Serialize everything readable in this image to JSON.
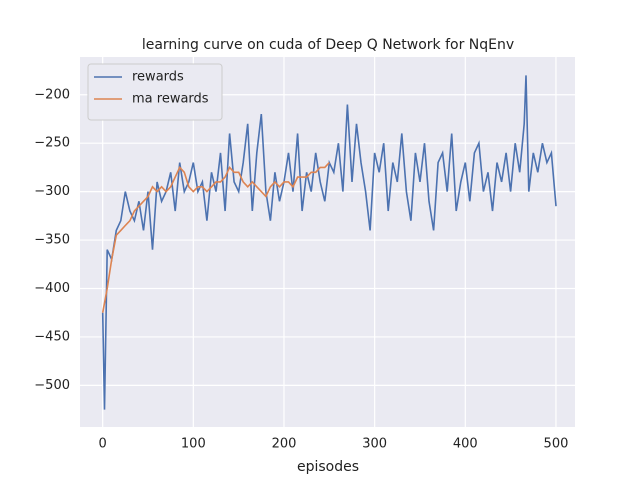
{
  "chart_data": {
    "type": "line",
    "title": "learning curve on cuda of Deep Q Network for NqEnv",
    "x_label": "episodes",
    "xlim": [
      -25,
      521
    ],
    "ylim": [
      -543,
      -161
    ],
    "xticks": [
      0,
      100,
      200,
      300,
      400,
      500
    ],
    "yticks": [
      {
        "value": -500,
        "label": "−500"
      },
      {
        "value": -450,
        "label": "−450"
      },
      {
        "value": -400,
        "label": "−400"
      },
      {
        "value": -350,
        "label": "−350"
      },
      {
        "value": -300,
        "label": "−300"
      },
      {
        "value": -250,
        "label": "−250"
      },
      {
        "value": -200,
        "label": "−200"
      }
    ],
    "grid": true,
    "legend": "upper left",
    "series": [
      {
        "name": "rewards",
        "color": "#4c72b0",
        "x": [
          0,
          2,
          5,
          10,
          15,
          20,
          25,
          30,
          35,
          40,
          45,
          50,
          55,
          60,
          65,
          70,
          75,
          80,
          85,
          90,
          95,
          100,
          105,
          110,
          115,
          120,
          125,
          130,
          135,
          140,
          145,
          150,
          155,
          160,
          165,
          170,
          175,
          180,
          185,
          190,
          195,
          200,
          205,
          210,
          215,
          220,
          225,
          230,
          235,
          240,
          245,
          250,
          255,
          260,
          265,
          270,
          275,
          280,
          285,
          290,
          295,
          300,
          305,
          310,
          315,
          320,
          325,
          330,
          335,
          340,
          345,
          350,
          355,
          360,
          365,
          370,
          375,
          380,
          385,
          390,
          395,
          400,
          405,
          410,
          415,
          420,
          425,
          430,
          435,
          440,
          445,
          450,
          455,
          460,
          465,
          467,
          470,
          475,
          480,
          485,
          490,
          495,
          500
        ],
        "values": [
          -425,
          -525,
          -360,
          -370,
          -340,
          -330,
          -300,
          -320,
          -330,
          -310,
          -340,
          -300,
          -360,
          -290,
          -310,
          -300,
          -280,
          -320,
          -270,
          -300,
          -290,
          -270,
          -300,
          -290,
          -330,
          -280,
          -300,
          -260,
          -320,
          -240,
          -290,
          -300,
          -270,
          -230,
          -320,
          -260,
          -220,
          -300,
          -330,
          -280,
          -310,
          -290,
          -260,
          -300,
          -240,
          -320,
          -280,
          -300,
          -260,
          -290,
          -310,
          -270,
          -280,
          -250,
          -300,
          -210,
          -290,
          -230,
          -270,
          -300,
          -340,
          -260,
          -280,
          -250,
          -320,
          -270,
          -290,
          -240,
          -300,
          -330,
          -260,
          -290,
          -250,
          -310,
          -340,
          -270,
          -260,
          -300,
          -240,
          -320,
          -290,
          -270,
          -310,
          -260,
          -250,
          -300,
          -280,
          -320,
          -270,
          -290,
          -260,
          -300,
          -250,
          -280,
          -230,
          -180,
          -300,
          -260,
          -280,
          -250,
          -270,
          -260,
          -315
        ]
      },
      {
        "name": "ma rewards",
        "color": "#dd8452",
        "x": [
          0,
          5,
          10,
          15,
          20,
          25,
          30,
          35,
          40,
          45,
          50,
          55,
          60,
          65,
          70,
          75,
          80,
          85,
          90,
          95,
          100,
          105,
          110,
          115,
          120,
          125,
          130,
          135,
          140,
          145,
          150,
          155,
          160,
          165,
          170,
          175,
          180,
          185,
          190,
          195,
          200,
          205,
          210,
          215,
          220,
          225,
          230,
          235,
          240,
          245,
          250
        ],
        "values": [
          -425,
          -400,
          -370,
          -345,
          -340,
          -335,
          -330,
          -320,
          -315,
          -310,
          -305,
          -295,
          -300,
          -295,
          -300,
          -295,
          -285,
          -275,
          -280,
          -295,
          -300,
          -295,
          -295,
          -300,
          -295,
          -290,
          -290,
          -285,
          -275,
          -280,
          -280,
          -290,
          -295,
          -290,
          -295,
          -300,
          -305,
          -295,
          -290,
          -295,
          -290,
          -290,
          -295,
          -285,
          -285,
          -285,
          -280,
          -280,
          -275,
          -275,
          -270
        ]
      }
    ]
  }
}
